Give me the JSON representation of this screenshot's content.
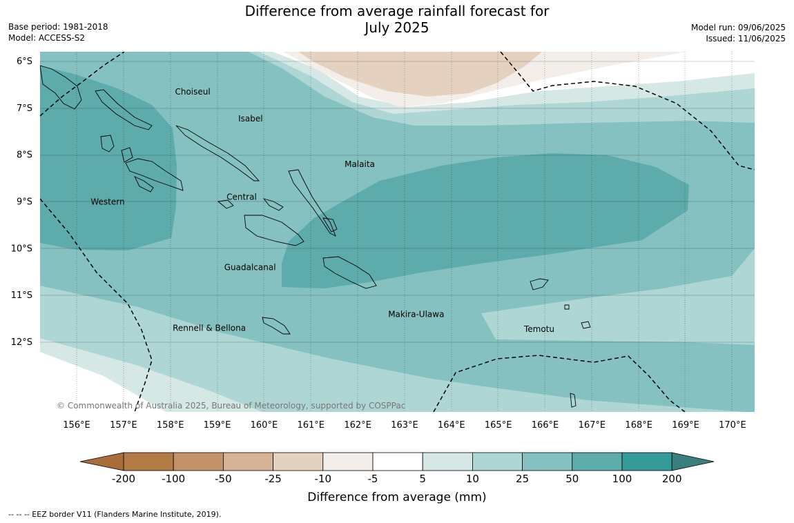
{
  "title_line1": "Difference from average rainfall forecast for",
  "title_line2": "July 2025",
  "meta_left": {
    "base_period": "Base period: 1981-2018",
    "model": "Model: ACCESS-S2"
  },
  "meta_right": {
    "model_run": "Model run: 09/06/2025",
    "issued": "Issued: 11/06/2025"
  },
  "map": {
    "lat_labels": [
      "6°S",
      "7°S",
      "8°S",
      "9°S",
      "10°S",
      "11°S",
      "12°S"
    ],
    "lon_labels": [
      "156°E",
      "157°E",
      "158°E",
      "159°E",
      "160°E",
      "161°E",
      "162°E",
      "163°E",
      "164°E",
      "165°E",
      "166°E",
      "167°E",
      "168°E",
      "169°E",
      "170°E"
    ],
    "regions": [
      {
        "name": "Choiseul",
        "lon": 158.1,
        "lat": -6.65
      },
      {
        "name": "Isabel",
        "lon": 159.45,
        "lat": -7.22
      },
      {
        "name": "Malaita",
        "lon": 161.72,
        "lat": -8.2
      },
      {
        "name": "Western",
        "lon": 156.3,
        "lat": -9.0
      },
      {
        "name": "Central",
        "lon": 159.2,
        "lat": -8.9
      },
      {
        "name": "Guadalcanal",
        "lon": 159.15,
        "lat": -10.4
      },
      {
        "name": "Makira-Ulawa",
        "lon": 162.65,
        "lat": -11.4
      },
      {
        "name": "Rennell & Bellona",
        "lon": 158.05,
        "lat": -11.7
      },
      {
        "name": "Temotu",
        "lon": 165.55,
        "lat": -11.72
      }
    ],
    "copyright": "© Commonwealth of Australia 2025, Bureau of Meteorology, supported by COSPPac"
  },
  "colorbar": {
    "ticks": [
      "-200",
      "-100",
      "-50",
      "-25",
      "-10",
      "-5",
      "5",
      "10",
      "25",
      "50",
      "100",
      "200"
    ],
    "colors": [
      "#a86d39",
      "#b27a45",
      "#c39268",
      "#d7b395",
      "#e5d1c0",
      "#f3eee9",
      "#ffffff",
      "#d5e8e6",
      "#aed6d5",
      "#85c1c0",
      "#5eabac",
      "#349b9a",
      "#3a7f7d"
    ],
    "title": "Difference from average (mm)"
  },
  "footnote": "--  --  -- EEZ border V11 (Flanders Marine Institute, 2019)."
}
